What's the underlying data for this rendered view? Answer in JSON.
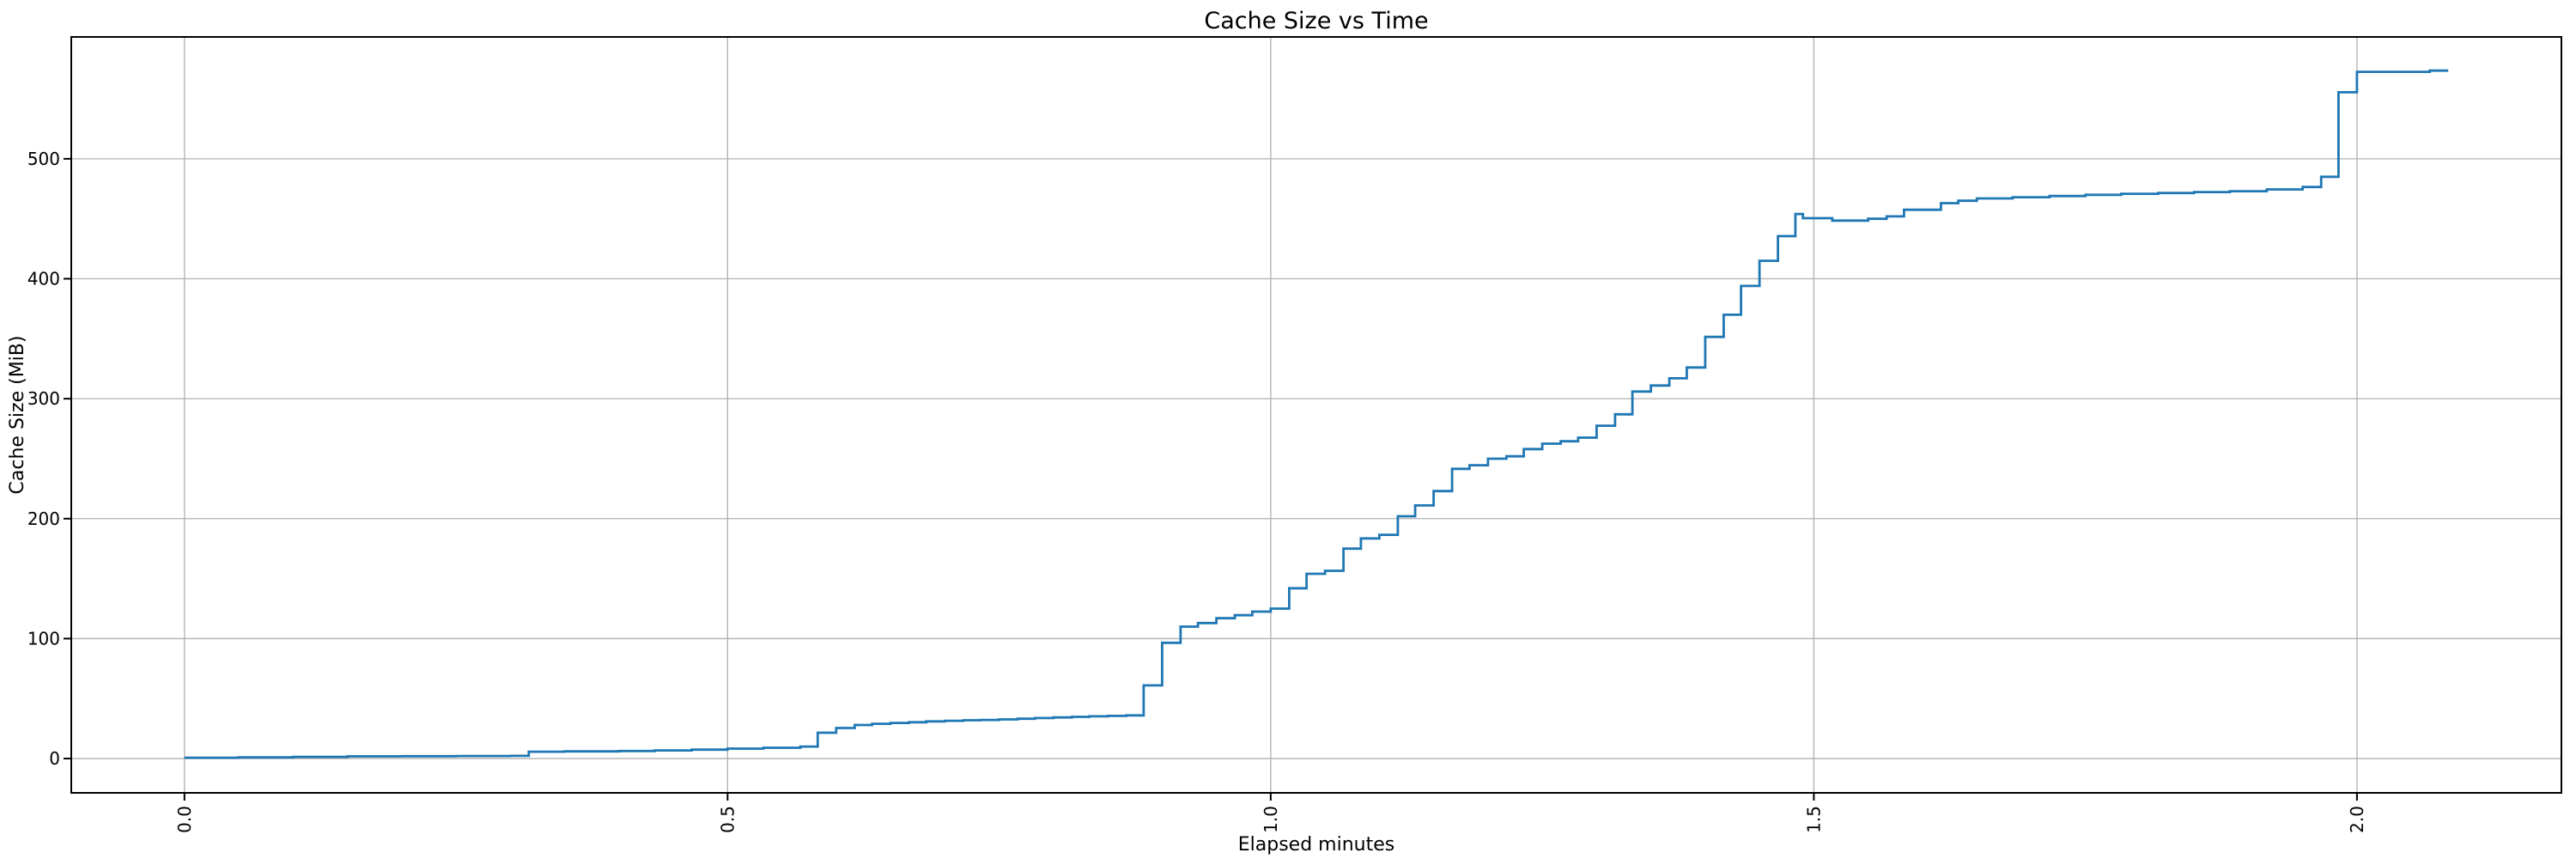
{
  "figure": {
    "background": "#ffffff"
  },
  "chart_data": {
    "type": "line",
    "step_mode": "post",
    "title": "Cache Size vs Time",
    "xlabel": "Elapsed minutes",
    "ylabel": "Cache Size (MiB)",
    "x_ticks": [
      0.0,
      0.5,
      1.0,
      1.5,
      2.0
    ],
    "x_tick_labels": [
      "0.0",
      "0.5",
      "1.0",
      "1.5",
      "2.0"
    ],
    "y_ticks": [
      0,
      100,
      200,
      300,
      400,
      500
    ],
    "y_tick_labels": [
      "0",
      "100",
      "200",
      "300",
      "400",
      "500"
    ],
    "xlim": [
      -0.1042,
      2.1882
    ],
    "ylim": [
      -28.6,
      601.6
    ],
    "grid": true,
    "x_tick_rotation": 90,
    "legend": null,
    "line_color": "#1f77b4",
    "grid_color": "#b0b0b0",
    "spine_color": "#000000",
    "points": [
      [
        0.0,
        0.7
      ],
      [
        0.05,
        1.0
      ],
      [
        0.1,
        1.4
      ],
      [
        0.15,
        1.8
      ],
      [
        0.2,
        2.0
      ],
      [
        0.25,
        2.1
      ],
      [
        0.3,
        2.3
      ],
      [
        0.317,
        5.7
      ],
      [
        0.35,
        6.0
      ],
      [
        0.4,
        6.3
      ],
      [
        0.433,
        6.8
      ],
      [
        0.467,
        7.4
      ],
      [
        0.5,
        8.3
      ],
      [
        0.533,
        9.0
      ],
      [
        0.567,
        10.0
      ],
      [
        0.583,
        21.5
      ],
      [
        0.6,
        25.5
      ],
      [
        0.617,
        28.0
      ],
      [
        0.633,
        29.0
      ],
      [
        0.65,
        29.7
      ],
      [
        0.667,
        30.3
      ],
      [
        0.683,
        31.0
      ],
      [
        0.7,
        31.5
      ],
      [
        0.717,
        31.9
      ],
      [
        0.733,
        32.2
      ],
      [
        0.75,
        32.6
      ],
      [
        0.767,
        33.2
      ],
      [
        0.783,
        33.8
      ],
      [
        0.8,
        34.3
      ],
      [
        0.817,
        34.8
      ],
      [
        0.833,
        35.2
      ],
      [
        0.85,
        35.6
      ],
      [
        0.867,
        36.0
      ],
      [
        0.883,
        61.0
      ],
      [
        0.9,
        96.5
      ],
      [
        0.917,
        110.0
      ],
      [
        0.933,
        113.0
      ],
      [
        0.95,
        117.0
      ],
      [
        0.967,
        119.5
      ],
      [
        0.983,
        122.5
      ],
      [
        1.0,
        125.0
      ],
      [
        1.017,
        142.0
      ],
      [
        1.033,
        154.0
      ],
      [
        1.05,
        156.5
      ],
      [
        1.067,
        175.0
      ],
      [
        1.083,
        183.5
      ],
      [
        1.1,
        186.5
      ],
      [
        1.117,
        202.0
      ],
      [
        1.133,
        211.0
      ],
      [
        1.15,
        223.0
      ],
      [
        1.167,
        241.5
      ],
      [
        1.183,
        244.5
      ],
      [
        1.2,
        250.0
      ],
      [
        1.217,
        252.0
      ],
      [
        1.233,
        258.0
      ],
      [
        1.25,
        262.5
      ],
      [
        1.267,
        264.5
      ],
      [
        1.283,
        267.5
      ],
      [
        1.3,
        277.5
      ],
      [
        1.317,
        287.0
      ],
      [
        1.333,
        306.0
      ],
      [
        1.35,
        311.0
      ],
      [
        1.367,
        317.0
      ],
      [
        1.383,
        326.0
      ],
      [
        1.4,
        351.5
      ],
      [
        1.417,
        370.0
      ],
      [
        1.433,
        394.0
      ],
      [
        1.45,
        415.0
      ],
      [
        1.467,
        435.5
      ],
      [
        1.483,
        454.0
      ],
      [
        1.49,
        450.5
      ],
      [
        1.517,
        448.5
      ],
      [
        1.55,
        450.0
      ],
      [
        1.567,
        452.0
      ],
      [
        1.583,
        457.5
      ],
      [
        1.617,
        463.0
      ],
      [
        1.633,
        465.0
      ],
      [
        1.65,
        467.0
      ],
      [
        1.683,
        468.0
      ],
      [
        1.717,
        469.0
      ],
      [
        1.75,
        470.0
      ],
      [
        1.783,
        470.8
      ],
      [
        1.817,
        471.5
      ],
      [
        1.85,
        472.3
      ],
      [
        1.883,
        473.0
      ],
      [
        1.917,
        474.5
      ],
      [
        1.95,
        476.5
      ],
      [
        1.967,
        485.0
      ],
      [
        1.983,
        555.5
      ],
      [
        2.0,
        572.5
      ],
      [
        2.067,
        573.5
      ],
      [
        2.084,
        573.5
      ]
    ]
  }
}
